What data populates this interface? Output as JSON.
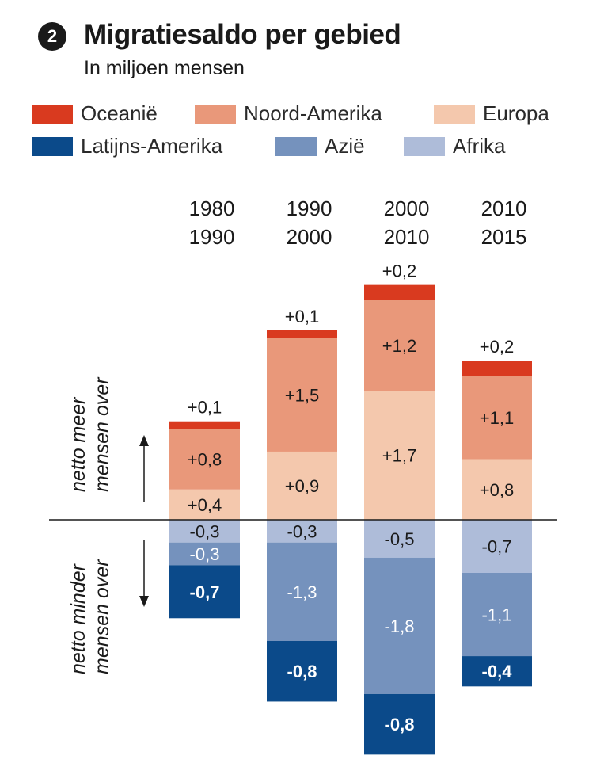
{
  "header": {
    "badge_number": "2",
    "title": "Migratiesaldo per gebied",
    "subtitle": "In miljoen mensen"
  },
  "colors": {
    "oceanie": "#d93a1f",
    "noord_amerika": "#e9987a",
    "europa": "#f4c8ad",
    "latijns_amerika": "#0b4a8a",
    "azie": "#7592bd",
    "afrika": "#aebcd9"
  },
  "legend": [
    {
      "label": "Oceanië",
      "color": "#d93a1f"
    },
    {
      "label": "Noord-Amerika",
      "color": "#e9987a"
    },
    {
      "label": "Europa",
      "color": "#f4c8ad"
    },
    {
      "label": "Latijns-Amerika",
      "color": "#0b4a8a"
    },
    {
      "label": "Azië",
      "color": "#7592bd"
    },
    {
      "label": "Afrika",
      "color": "#aebcd9"
    }
  ],
  "annotations": {
    "up_label_line1": "netto meer",
    "up_label_line2": "mensen over",
    "down_label_line1": "netto minder",
    "down_label_line2": "mensen over"
  },
  "chart_data": {
    "type": "bar",
    "stacked": true,
    "title": "Migratiesaldo per gebied",
    "subtitle": "In miljoen mensen",
    "categories": [
      [
        "1980",
        "1990"
      ],
      [
        "1990",
        "2000"
      ],
      [
        "2000",
        "2010"
      ],
      [
        "2010",
        "2015"
      ]
    ],
    "series": [
      {
        "name": "Europa",
        "color": "#f4c8ad",
        "values": [
          0.4,
          0.9,
          1.7,
          0.8
        ],
        "labels": [
          "+0,4",
          "+0,9",
          "+1,7",
          "+0,8"
        ]
      },
      {
        "name": "Noord-Amerika",
        "color": "#e9987a",
        "values": [
          0.8,
          1.5,
          1.2,
          1.1
        ],
        "labels": [
          "+0,8",
          "+1,5",
          "+1,2",
          "+1,1"
        ]
      },
      {
        "name": "Oceanië",
        "color": "#d93a1f",
        "values": [
          0.1,
          0.1,
          0.2,
          0.2
        ],
        "labels": [
          "+0,1",
          "+0,1",
          "+0,2",
          "+0,2"
        ]
      },
      {
        "name": "Afrika",
        "color": "#aebcd9",
        "values": [
          -0.3,
          -0.3,
          -0.5,
          -0.7
        ],
        "labels": [
          "-0,3",
          "-0,3",
          "-0,5",
          "-0,7"
        ]
      },
      {
        "name": "Azië",
        "color": "#7592bd",
        "values": [
          -0.3,
          -1.3,
          -1.8,
          -1.1
        ],
        "labels": [
          "-0,3",
          "-1,3",
          "-1,8",
          "-1,1"
        ]
      },
      {
        "name": "Latijns-Amerika",
        "color": "#0b4a8a",
        "values": [
          -0.7,
          -0.8,
          -0.8,
          -0.4
        ],
        "labels": [
          "-0,7",
          "-0,8",
          "-0,8",
          "-0,4"
        ]
      }
    ],
    "ylim": [
      -3.1,
      3.1
    ],
    "xlabel": "",
    "ylabel": "",
    "grid": false
  }
}
